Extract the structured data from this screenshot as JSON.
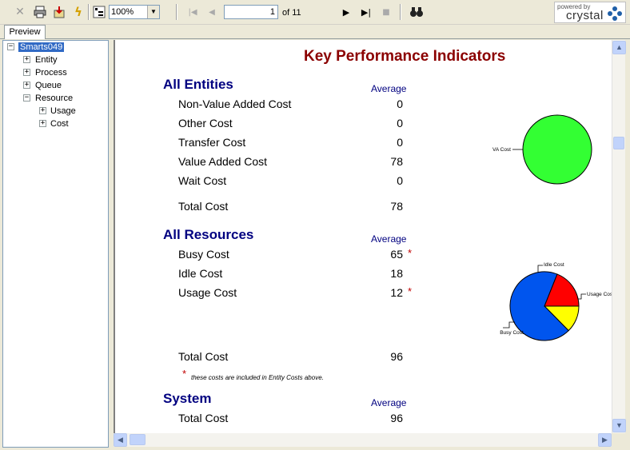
{
  "toolbar": {
    "zoom": "100%",
    "current_page": "1",
    "page_of": "of 11",
    "logo_powered": "powered by",
    "logo_brand": "crystal"
  },
  "tabs": [
    "Preview"
  ],
  "tree": {
    "root": "Smarts049",
    "children": [
      "Entity",
      "Process",
      "Queue",
      "Resource"
    ],
    "resource_children": [
      "Usage",
      "Cost"
    ]
  },
  "report": {
    "title": "Key Performance Indicators",
    "avg_header": "Average",
    "entities": {
      "heading": "All Entities",
      "rows": [
        {
          "label": "Non-Value Added Cost",
          "value": "0"
        },
        {
          "label": "Other Cost",
          "value": "0"
        },
        {
          "label": "Transfer Cost",
          "value": "0"
        },
        {
          "label": "Value Added Cost",
          "value": "78"
        },
        {
          "label": "Wait Cost",
          "value": "0"
        }
      ],
      "total_label": "Total Cost",
      "total_value": "78"
    },
    "resources": {
      "heading": "All Resources",
      "rows": [
        {
          "label": "Busy Cost",
          "value": "65",
          "star": "*"
        },
        {
          "label": "Idle Cost",
          "value": "18",
          "star": ""
        },
        {
          "label": "Usage Cost",
          "value": "12",
          "star": "*"
        }
      ],
      "total_label": "Total Cost",
      "total_value": "96",
      "note_star": "*",
      "note": "these costs are included in Entity Costs above."
    },
    "system": {
      "heading": "System",
      "total_label": "Total Cost",
      "total_value": "96"
    }
  },
  "chart_data": [
    {
      "type": "pie",
      "slices": [
        {
          "label": "VA Cost",
          "value": 78,
          "color": "#33ff33"
        }
      ]
    },
    {
      "type": "pie",
      "slices": [
        {
          "label": "Busy Cost",
          "value": 65,
          "color": "#0055ee"
        },
        {
          "label": "Idle Cost",
          "value": 18,
          "color": "#ff0000"
        },
        {
          "label": "Usage Cost",
          "value": 12,
          "color": "#ffff00"
        }
      ]
    }
  ]
}
